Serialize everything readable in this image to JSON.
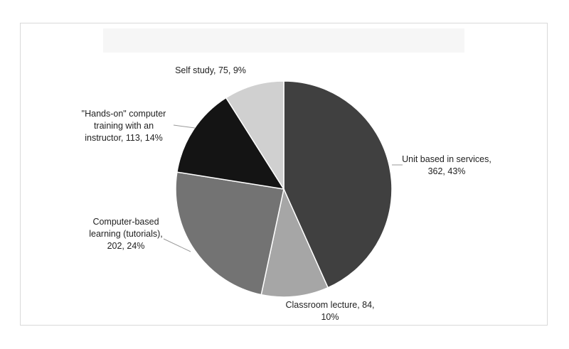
{
  "chart_data": {
    "type": "pie",
    "title": "",
    "slices": [
      {
        "label": "Unit based in services",
        "value": 362,
        "percent": "43%",
        "color": "#404040",
        "label_lines": [
          "Unit based in services,",
          "362, 43%"
        ]
      },
      {
        "label": "Classroom lecture",
        "value": 84,
        "percent": "10%",
        "color": "#a6a6a6",
        "label_lines": [
          "Classroom lecture, 84,",
          "10%"
        ]
      },
      {
        "label": "Computer-based learning (tutorials)",
        "value": 202,
        "percent": "24%",
        "color": "#737373",
        "label_lines": [
          "Computer-based",
          "learning (tutorials),",
          "202, 24%"
        ]
      },
      {
        "label": "\"Hands-on\" computer training with an instructor",
        "value": 113,
        "percent": "14%",
        "color": "#141414",
        "label_lines": [
          "\"Hands-on\" computer",
          "training with an",
          "instructor, 113, 14%"
        ]
      },
      {
        "label": "Self study",
        "value": 75,
        "percent": "9%",
        "color": "#d0d0d0",
        "label_lines": [
          "Self study, 75, 9%"
        ]
      }
    ],
    "legend": "none"
  }
}
